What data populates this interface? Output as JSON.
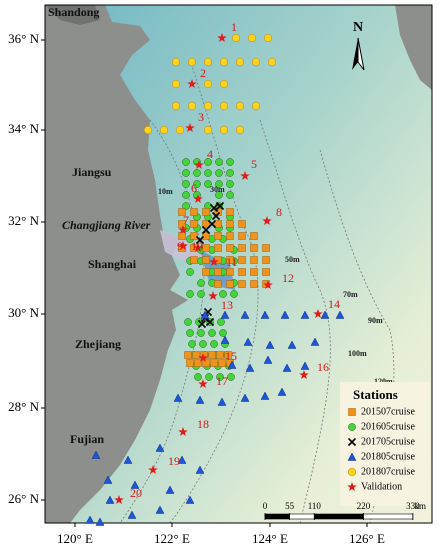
{
  "map": {
    "lat_labels": [
      "36° N",
      "34° N",
      "32° N",
      "30° N",
      "28° N",
      "26° N"
    ],
    "lon_labels": [
      "120° E",
      "122° E",
      "124° E",
      "126° E"
    ],
    "regions": [
      "Shandong",
      "Jiangsu",
      "Changjiang River",
      "Shanghai",
      "Zhejiang",
      "Fujian"
    ],
    "depth_contours": [
      "10m",
      "30m",
      "50m",
      "70m",
      "90m",
      "100m",
      "120m"
    ],
    "validation_ids": [
      1,
      2,
      3,
      4,
      5,
      6,
      7,
      8,
      9,
      10,
      11,
      12,
      13,
      14,
      15,
      16,
      17,
      18,
      19,
      20
    ],
    "north": "N",
    "legend": {
      "title": "Stations",
      "entries": [
        "201507cruise",
        "201605cruise",
        "201705cruise",
        "201805cruise",
        "201807cruise",
        "Validation"
      ]
    },
    "scale_bar": {
      "ticks": [
        0,
        55,
        110,
        220,
        330
      ],
      "unit": "km"
    }
  }
}
